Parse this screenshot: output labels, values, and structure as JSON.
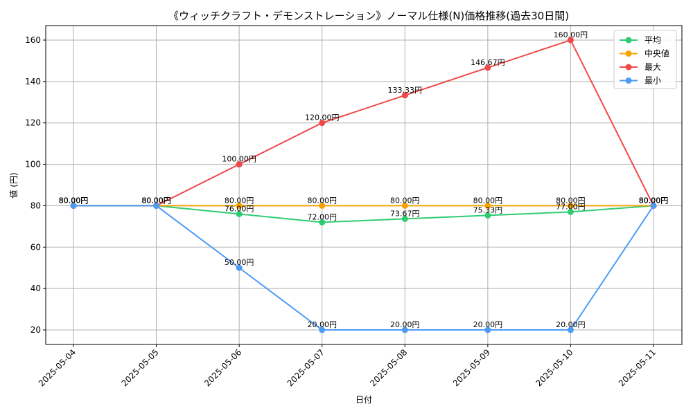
{
  "chart_data": {
    "type": "line",
    "title": "《ウィッチクラフト・デモンストレーション》ノーマル仕様(N)価格推移(過去30日間)",
    "xlabel": "日付",
    "ylabel": "値 (円)",
    "x": [
      "2025-05-04",
      "2025-05-05",
      "2025-05-06",
      "2025-05-07",
      "2025-05-08",
      "2025-05-09",
      "2025-05-10",
      "2025-05-11"
    ],
    "ylim": [
      13,
      167
    ],
    "yticks": [
      20,
      40,
      60,
      80,
      100,
      120,
      140,
      160
    ],
    "grid": true,
    "legend_position": "top-right",
    "series": [
      {
        "name": "平均",
        "color": "#2ecc71",
        "values": [
          80.0,
          80.0,
          76.0,
          72.0,
          73.67,
          75.33,
          77.0,
          80.0
        ],
        "labels": [
          "80.00円",
          "80.00円",
          "76.00円",
          "72.00円",
          "73.67円",
          "75.33円",
          "77.00円",
          "80.00円"
        ]
      },
      {
        "name": "中央値",
        "color": "#f5a300",
        "values": [
          80.0,
          80.0,
          80.0,
          80.0,
          80.0,
          80.0,
          80.0,
          80.0
        ],
        "labels": [
          "80.00円",
          "80.00円",
          "80.00円",
          "80.00円",
          "80.00円",
          "80.00円",
          "80.00円",
          "80.00円"
        ]
      },
      {
        "name": "最大",
        "color": "#f04848",
        "values": [
          80.0,
          80.0,
          100.0,
          120.0,
          133.33,
          146.67,
          160.0,
          80.0
        ],
        "labels": [
          "80.00円",
          "80.00円",
          "100.00円",
          "120.00円",
          "133.33円",
          "146.67円",
          "160.00円",
          "80.00円"
        ]
      },
      {
        "name": "最小",
        "color": "#4c9bf5",
        "values": [
          80.0,
          80.0,
          50.0,
          20.0,
          20.0,
          20.0,
          20.0,
          80.0
        ],
        "labels": [
          "80.00円",
          "80.00円",
          "50.00円",
          "20.00円",
          "20.00円",
          "20.00円",
          "20.00円",
          "80.00円"
        ]
      }
    ]
  }
}
